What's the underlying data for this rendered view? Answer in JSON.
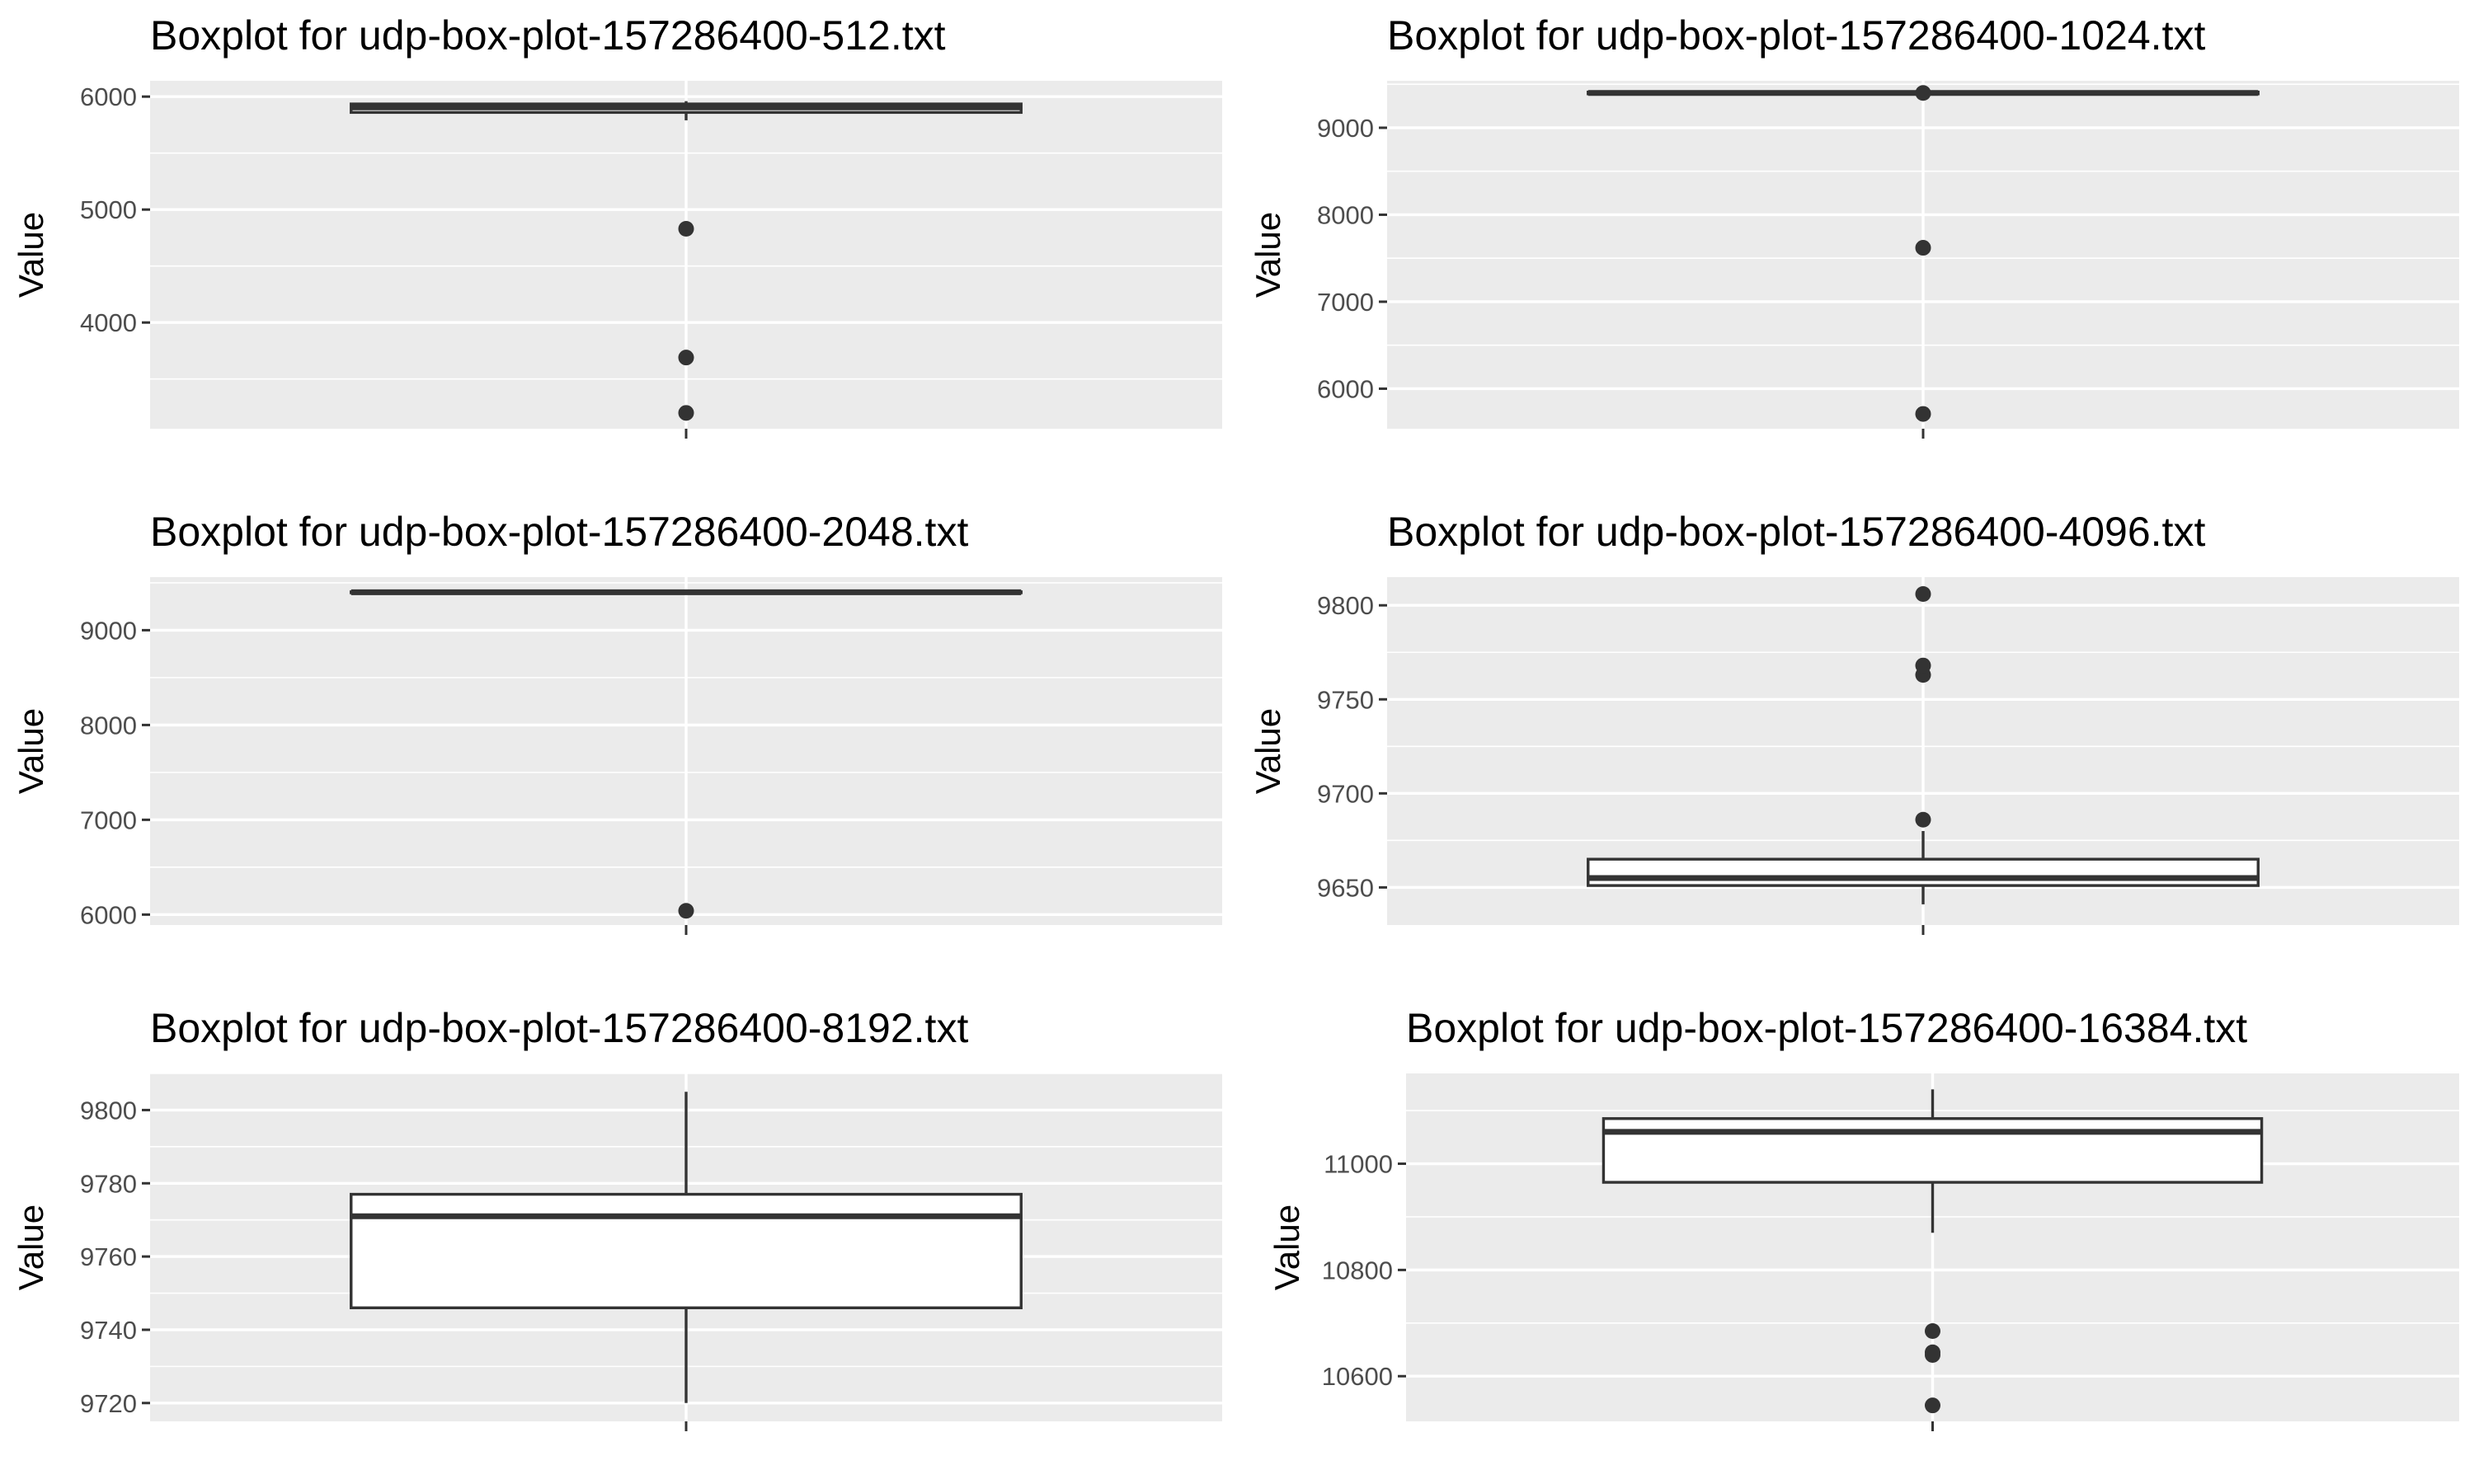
{
  "chart_data": [
    {
      "type": "boxplot",
      "title": "Boxplot for udp-box-plot-157286400-512.txt",
      "xlabel": "",
      "ylabel": "Value",
      "ylim": [
        3060,
        6140
      ],
      "yticks": [
        4000,
        5000,
        6000
      ],
      "ytick_labels": [
        "4000",
        "5000",
        "6000"
      ],
      "grid": true,
      "box": {
        "q1": 5860,
        "median": 5905,
        "q3": 5935,
        "whisker_low": 5790,
        "whisker_high": 5960
      },
      "outliers": [
        4830,
        3690,
        3200
      ]
    },
    {
      "type": "boxplot",
      "title": "Boxplot for udp-box-plot-157286400-1024.txt",
      "xlabel": "",
      "ylabel": "Value",
      "ylim": [
        5540,
        9540
      ],
      "yticks": [
        6000,
        7000,
        8000,
        9000
      ],
      "ytick_labels": [
        "6000",
        "7000",
        "8000",
        "9000"
      ],
      "grid": true,
      "box": {
        "q1": 9390,
        "median": 9400,
        "q3": 9410,
        "whisker_low": 9390,
        "whisker_high": 9410
      },
      "outliers": [
        9400,
        7620,
        5710
      ]
    },
    {
      "type": "boxplot",
      "title": "Boxplot for udp-box-plot-157286400-2048.txt",
      "xlabel": "",
      "ylabel": "Value",
      "ylim": [
        5890,
        9560
      ],
      "yticks": [
        6000,
        7000,
        8000,
        9000
      ],
      "ytick_labels": [
        "6000",
        "7000",
        "8000",
        "9000"
      ],
      "grid": true,
      "box": {
        "q1": 9395,
        "median": 9400,
        "q3": 9405,
        "whisker_low": 9395,
        "whisker_high": 9405
      },
      "outliers": [
        6040
      ]
    },
    {
      "type": "boxplot",
      "title": "Boxplot for udp-box-plot-157286400-4096.txt",
      "xlabel": "",
      "ylabel": "Value",
      "ylim": [
        9630,
        9815
      ],
      "yticks": [
        9650,
        9700,
        9750,
        9800
      ],
      "ytick_labels": [
        "9650",
        "9700",
        "9750",
        "9800"
      ],
      "grid": true,
      "box": {
        "q1": 9651,
        "median": 9655,
        "q3": 9665,
        "whisker_low": 9641,
        "whisker_high": 9680
      },
      "outliers": [
        9686,
        9763,
        9768,
        9806
      ]
    },
    {
      "type": "boxplot",
      "title": "Boxplot for udp-box-plot-157286400-8192.txt",
      "xlabel": "",
      "ylabel": "Value",
      "ylim": [
        9715,
        9810
      ],
      "yticks": [
        9720,
        9740,
        9760,
        9780,
        9800
      ],
      "ytick_labels": [
        "9720",
        "9740",
        "9760",
        "9780",
        "9800"
      ],
      "grid": true,
      "box": {
        "q1": 9746,
        "median": 9771,
        "q3": 9777,
        "whisker_low": 9720,
        "whisker_high": 9805
      },
      "outliers": []
    },
    {
      "type": "boxplot",
      "title": "Boxplot for udp-box-plot-157286400-16384.txt",
      "xlabel": "",
      "ylabel": "Value",
      "ylim": [
        10515,
        11170
      ],
      "yticks": [
        10600,
        10800,
        11000
      ],
      "ytick_labels": [
        "10600",
        "10800",
        "11000"
      ],
      "grid": true,
      "box": {
        "q1": 10965,
        "median": 11060,
        "q3": 11085,
        "whisker_low": 10870,
        "whisker_high": 11140
      },
      "outliers": [
        10685,
        10645,
        10640,
        10545
      ]
    }
  ]
}
